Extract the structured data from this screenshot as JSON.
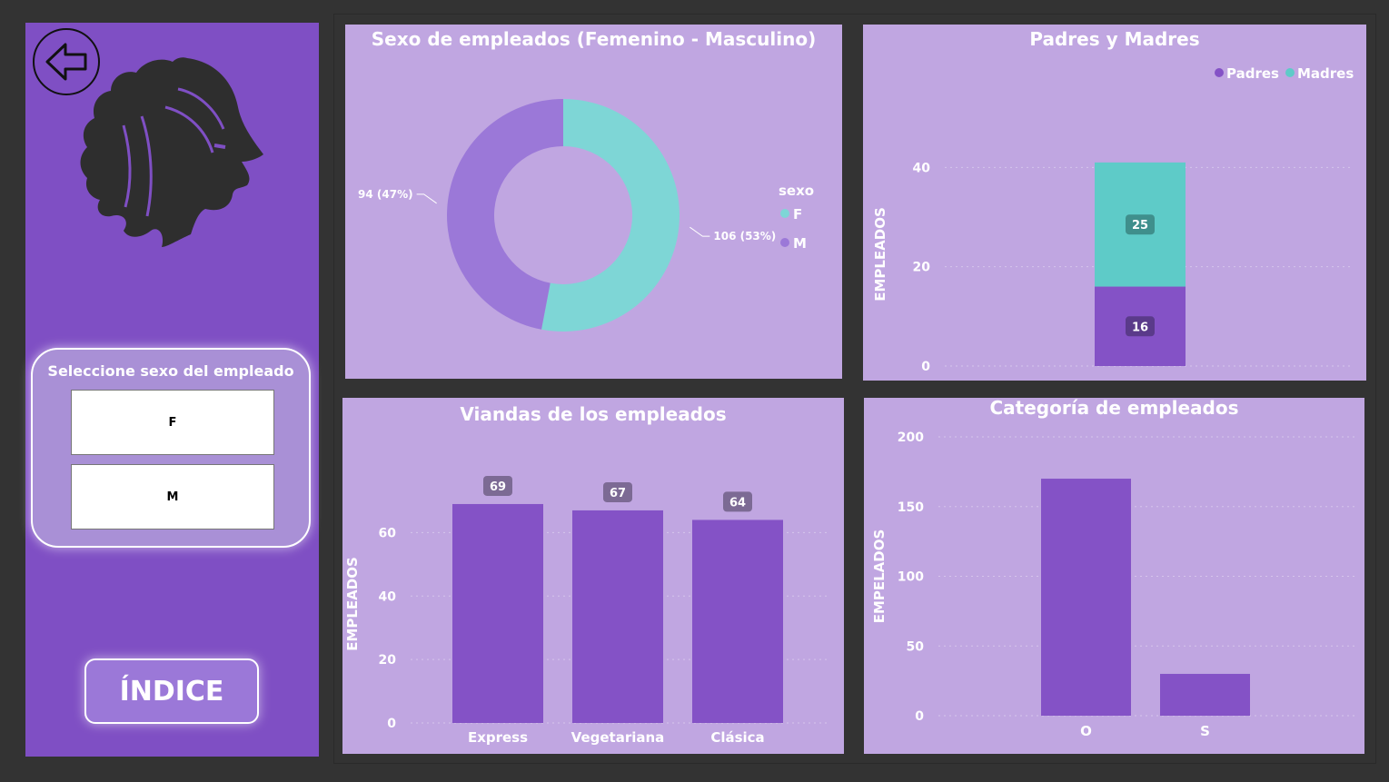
{
  "colors": {
    "sidebar": "#7F4FC4",
    "panel": "#C0A6E1",
    "accent_teal": "#7ED6D6",
    "accent_purple": "#9B78D8",
    "bar_purple": "#8452C6",
    "bar_teal": "#5ECBC8"
  },
  "sidebar": {
    "back_icon": "arrow-left-icon",
    "logo": "lion-head-logo",
    "slicer": {
      "title": "Seleccione sexo del empleado",
      "options": [
        "F",
        "M"
      ]
    },
    "index_button_label": "ÍNDICE"
  },
  "panels": {
    "donut_title": "Sexo de empleados (Femenino - Masculino)",
    "padres_title": "Padres y Madres",
    "viandas_title": "Viandas de los empleados",
    "categoria_title": "Categoría de empleados"
  },
  "chart_data": [
    {
      "type": "pie",
      "title": "Sexo de empleados (Femenino - Masculino)",
      "legend_title": "sexo",
      "legend_position": "right",
      "categories": [
        "F",
        "M"
      ],
      "values": [
        106,
        94
      ],
      "data_labels": [
        "106 (53%)",
        "94 (47%)"
      ]
    },
    {
      "type": "bar",
      "stacked": true,
      "title": "Padres y Madres",
      "ylabel": "EMPLEADOS",
      "ylim": [
        0,
        45
      ],
      "yticks": [
        0,
        20,
        40
      ],
      "legend_position": "top-right",
      "categories": [
        ""
      ],
      "series": [
        {
          "name": "Padres",
          "values": [
            16
          ]
        },
        {
          "name": "Madres",
          "values": [
            25
          ]
        }
      ]
    },
    {
      "type": "bar",
      "title": "Viandas de los empleados",
      "ylabel": "EMPLEADOS",
      "ylim": [
        0,
        75
      ],
      "yticks": [
        0,
        20,
        40,
        60
      ],
      "categories": [
        "Express",
        "Vegetariana",
        "Clásica"
      ],
      "values": [
        69,
        67,
        64
      ]
    },
    {
      "type": "bar",
      "title": "Categoría de empleados",
      "ylabel": "EMPELADOS",
      "ylim": [
        0,
        200
      ],
      "yticks": [
        0,
        50,
        100,
        150,
        200
      ],
      "categories": [
        "O",
        "S"
      ],
      "values": [
        170,
        30
      ]
    }
  ]
}
